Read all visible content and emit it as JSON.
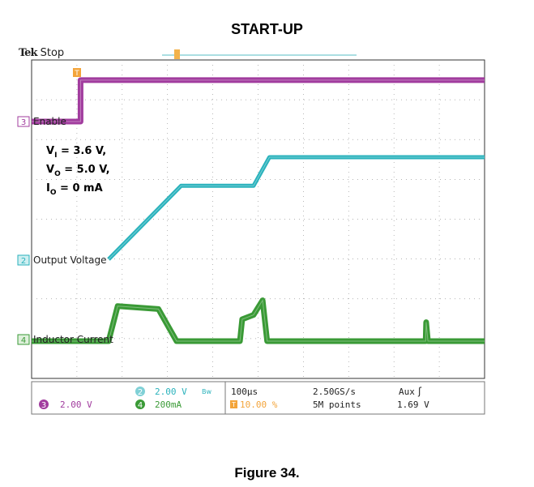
{
  "title": "START-UP",
  "caption": "Figure 34.",
  "scope": {
    "brand": "Tek",
    "status": "Stop",
    "conditions": [
      "V",
      "= 3.6 V,",
      "V",
      "= 5.0 V,",
      "I",
      "= 0 mA"
    ],
    "cond_subs": [
      "I",
      "O",
      "O"
    ],
    "trigger_marker": "T"
  },
  "chart_data": {
    "type": "line",
    "title": "START-UP",
    "x_unit": "µs",
    "x_per_div": 100,
    "x_range": [
      0,
      1000
    ],
    "grid": true,
    "series": [
      {
        "name": "Enable",
        "channel": "3",
        "color": "#a13c9e",
        "scale": "2.00 V",
        "x": [
          0,
          108,
          108,
          1000
        ],
        "y": [
          0,
          0,
          3.6,
          3.6
        ]
      },
      {
        "name": "Output Voltage",
        "channel": "2",
        "color": "#2ab2bc",
        "scale": "2.00 V",
        "x": [
          170,
          330,
          465,
          490,
          525,
          1000
        ],
        "y": [
          0,
          3.6,
          3.6,
          3.6,
          5.0,
          5.0
        ]
      },
      {
        "name": "Inductor Current",
        "channel": "4",
        "color": "#3a9a36",
        "scale": "200mA",
        "x": [
          0,
          170,
          190,
          280,
          320,
          340,
          460,
          465,
          490,
          510,
          520,
          870,
          871,
          875,
          1000
        ],
        "y": [
          0,
          0,
          480,
          440,
          0,
          0,
          0,
          300,
          360,
          560,
          0,
          0,
          260,
          0,
          0
        ]
      }
    ]
  },
  "readout": {
    "ch3_badge": "3",
    "ch3_scale": "2.00 V",
    "ch2_badge": "2",
    "ch2_scale": "2.00 V",
    "ch2_bw": "Bw",
    "ch4_badge": "4",
    "ch4_scale": "200mA",
    "timebase": "100µs",
    "trigger_pos_icon": "T",
    "trigger_pos": "10.00 %",
    "sample_rate": "2.50GS/s",
    "record_length": "5M points",
    "trigger_source": "Aux",
    "trigger_slope_icon": "rising-edge-icon",
    "trigger_slope_glyph": "ʃ",
    "trigger_level": "1.69 V"
  }
}
